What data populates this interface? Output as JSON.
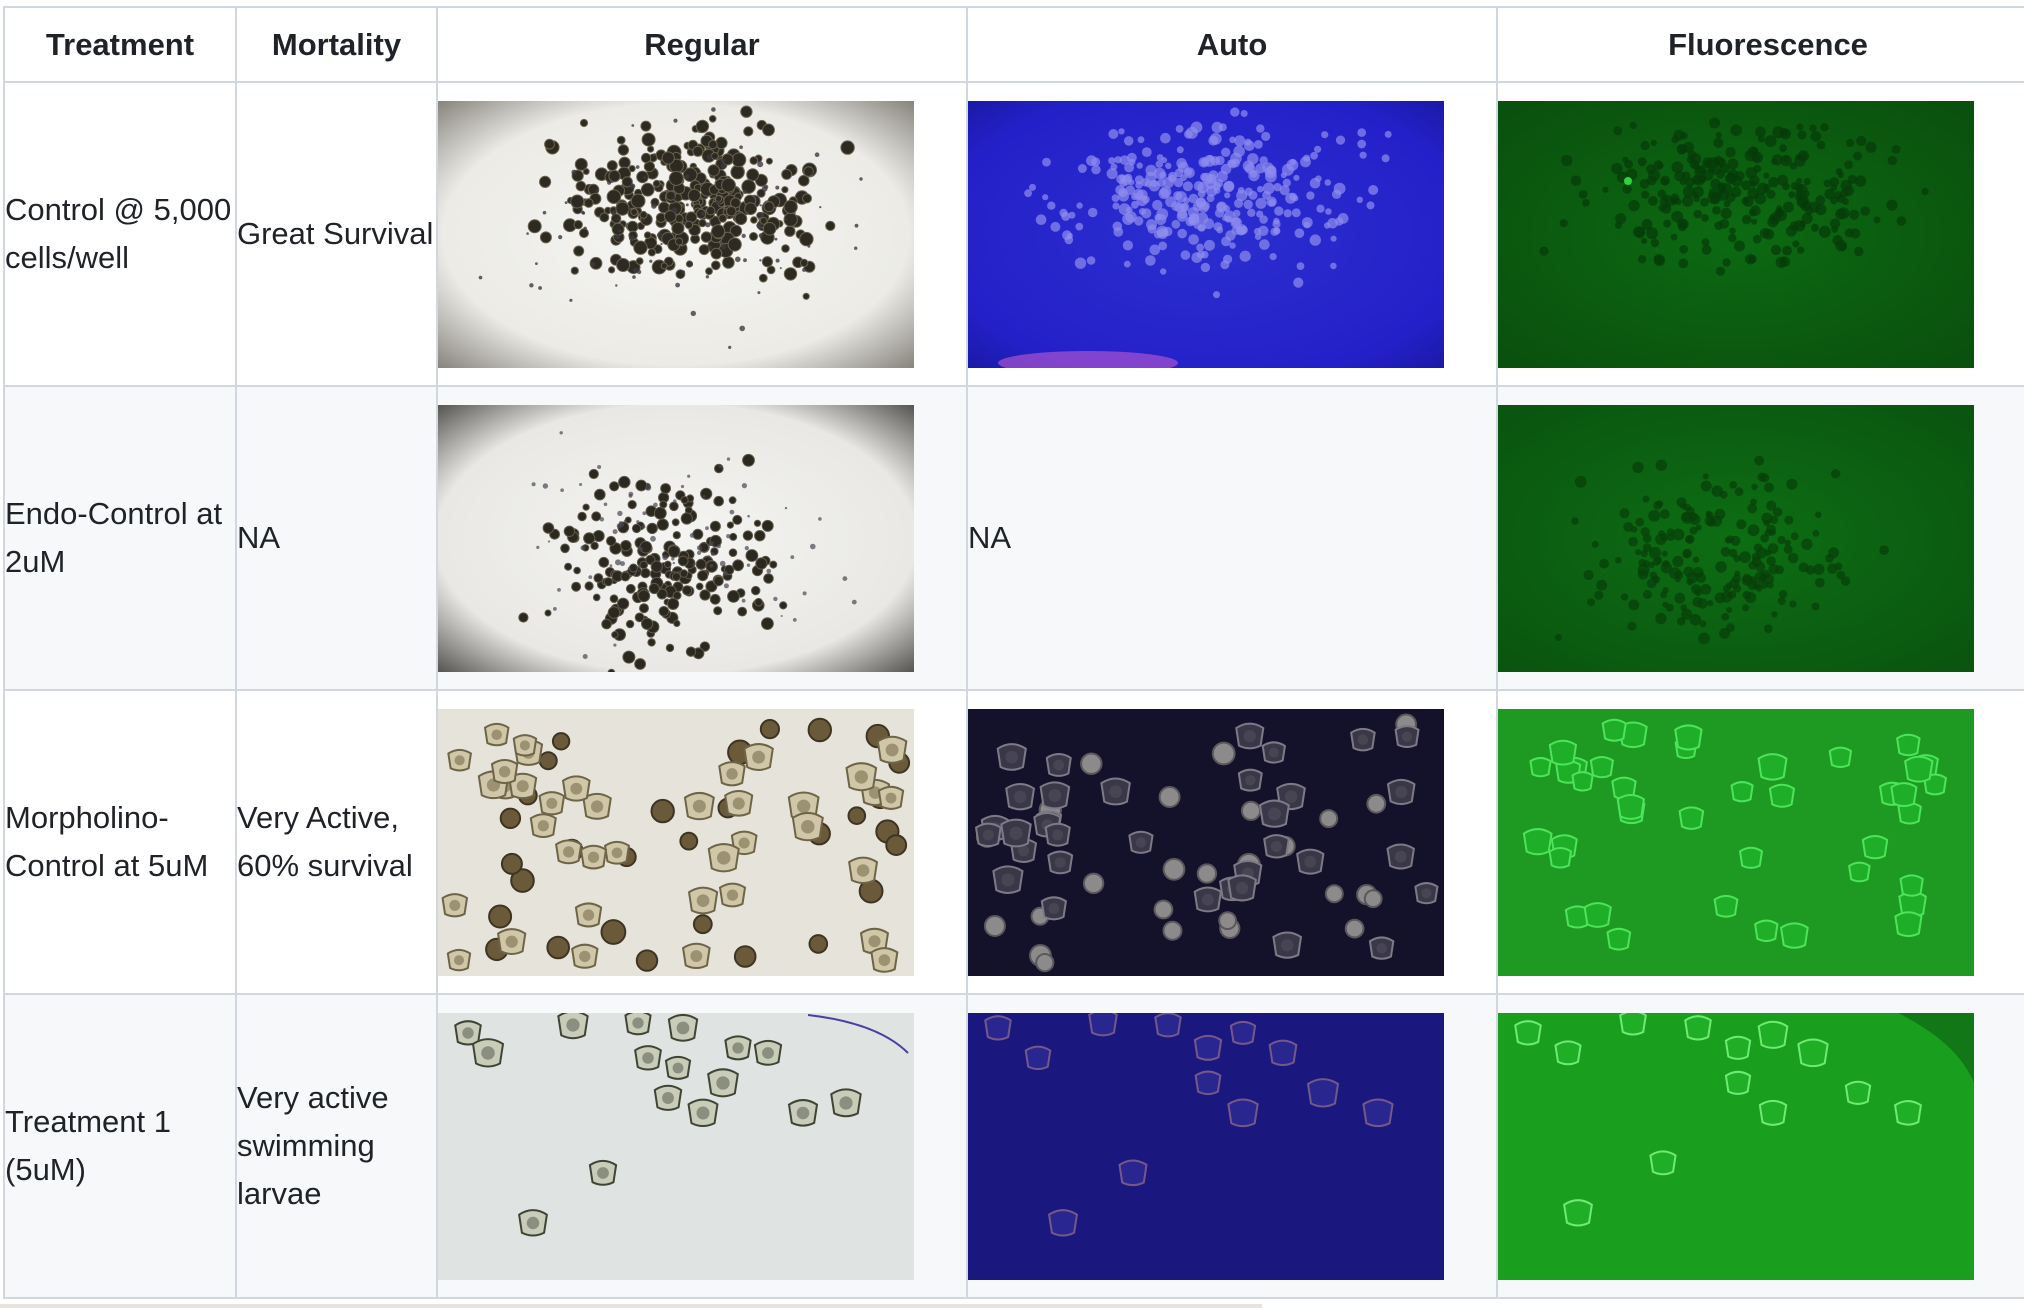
{
  "table": {
    "headers": [
      "Treatment",
      "Mortality",
      "Regular",
      "Auto",
      "Fluorescence"
    ],
    "rows": [
      {
        "treatment": "Control @ 5,000 cells/well",
        "mortality": "Great Survival",
        "regular": {
          "type": "image",
          "style": "brightfield-dense"
        },
        "auto": {
          "type": "image",
          "style": "auto-blue-dots"
        },
        "fluorescence": {
          "type": "image",
          "style": "fluor-dim-green"
        }
      },
      {
        "treatment": "Endo-Control at 2uM",
        "mortality": "NA",
        "regular": {
          "type": "image",
          "style": "brightfield-sparse"
        },
        "auto": {
          "type": "text",
          "value": "NA"
        },
        "fluorescence": {
          "type": "image",
          "style": "fluor-dim-green"
        }
      },
      {
        "treatment": "Morpholino-Control at 5uM",
        "mortality": "Very Active, 60% survival",
        "regular": {
          "type": "image",
          "style": "brightfield-larvae"
        },
        "auto": {
          "type": "image",
          "style": "auto-dark-larvae"
        },
        "fluorescence": {
          "type": "image",
          "style": "fluor-bright-larvae"
        }
      },
      {
        "treatment": "Treatment 1 (5uM)",
        "mortality": "Very active swimming larvae",
        "regular": {
          "type": "image",
          "style": "brightfield-few-larvae"
        },
        "auto": {
          "type": "image",
          "style": "auto-navy-larvae"
        },
        "fluorescence": {
          "type": "image",
          "style": "fluor-green-larvae"
        }
      }
    ]
  }
}
